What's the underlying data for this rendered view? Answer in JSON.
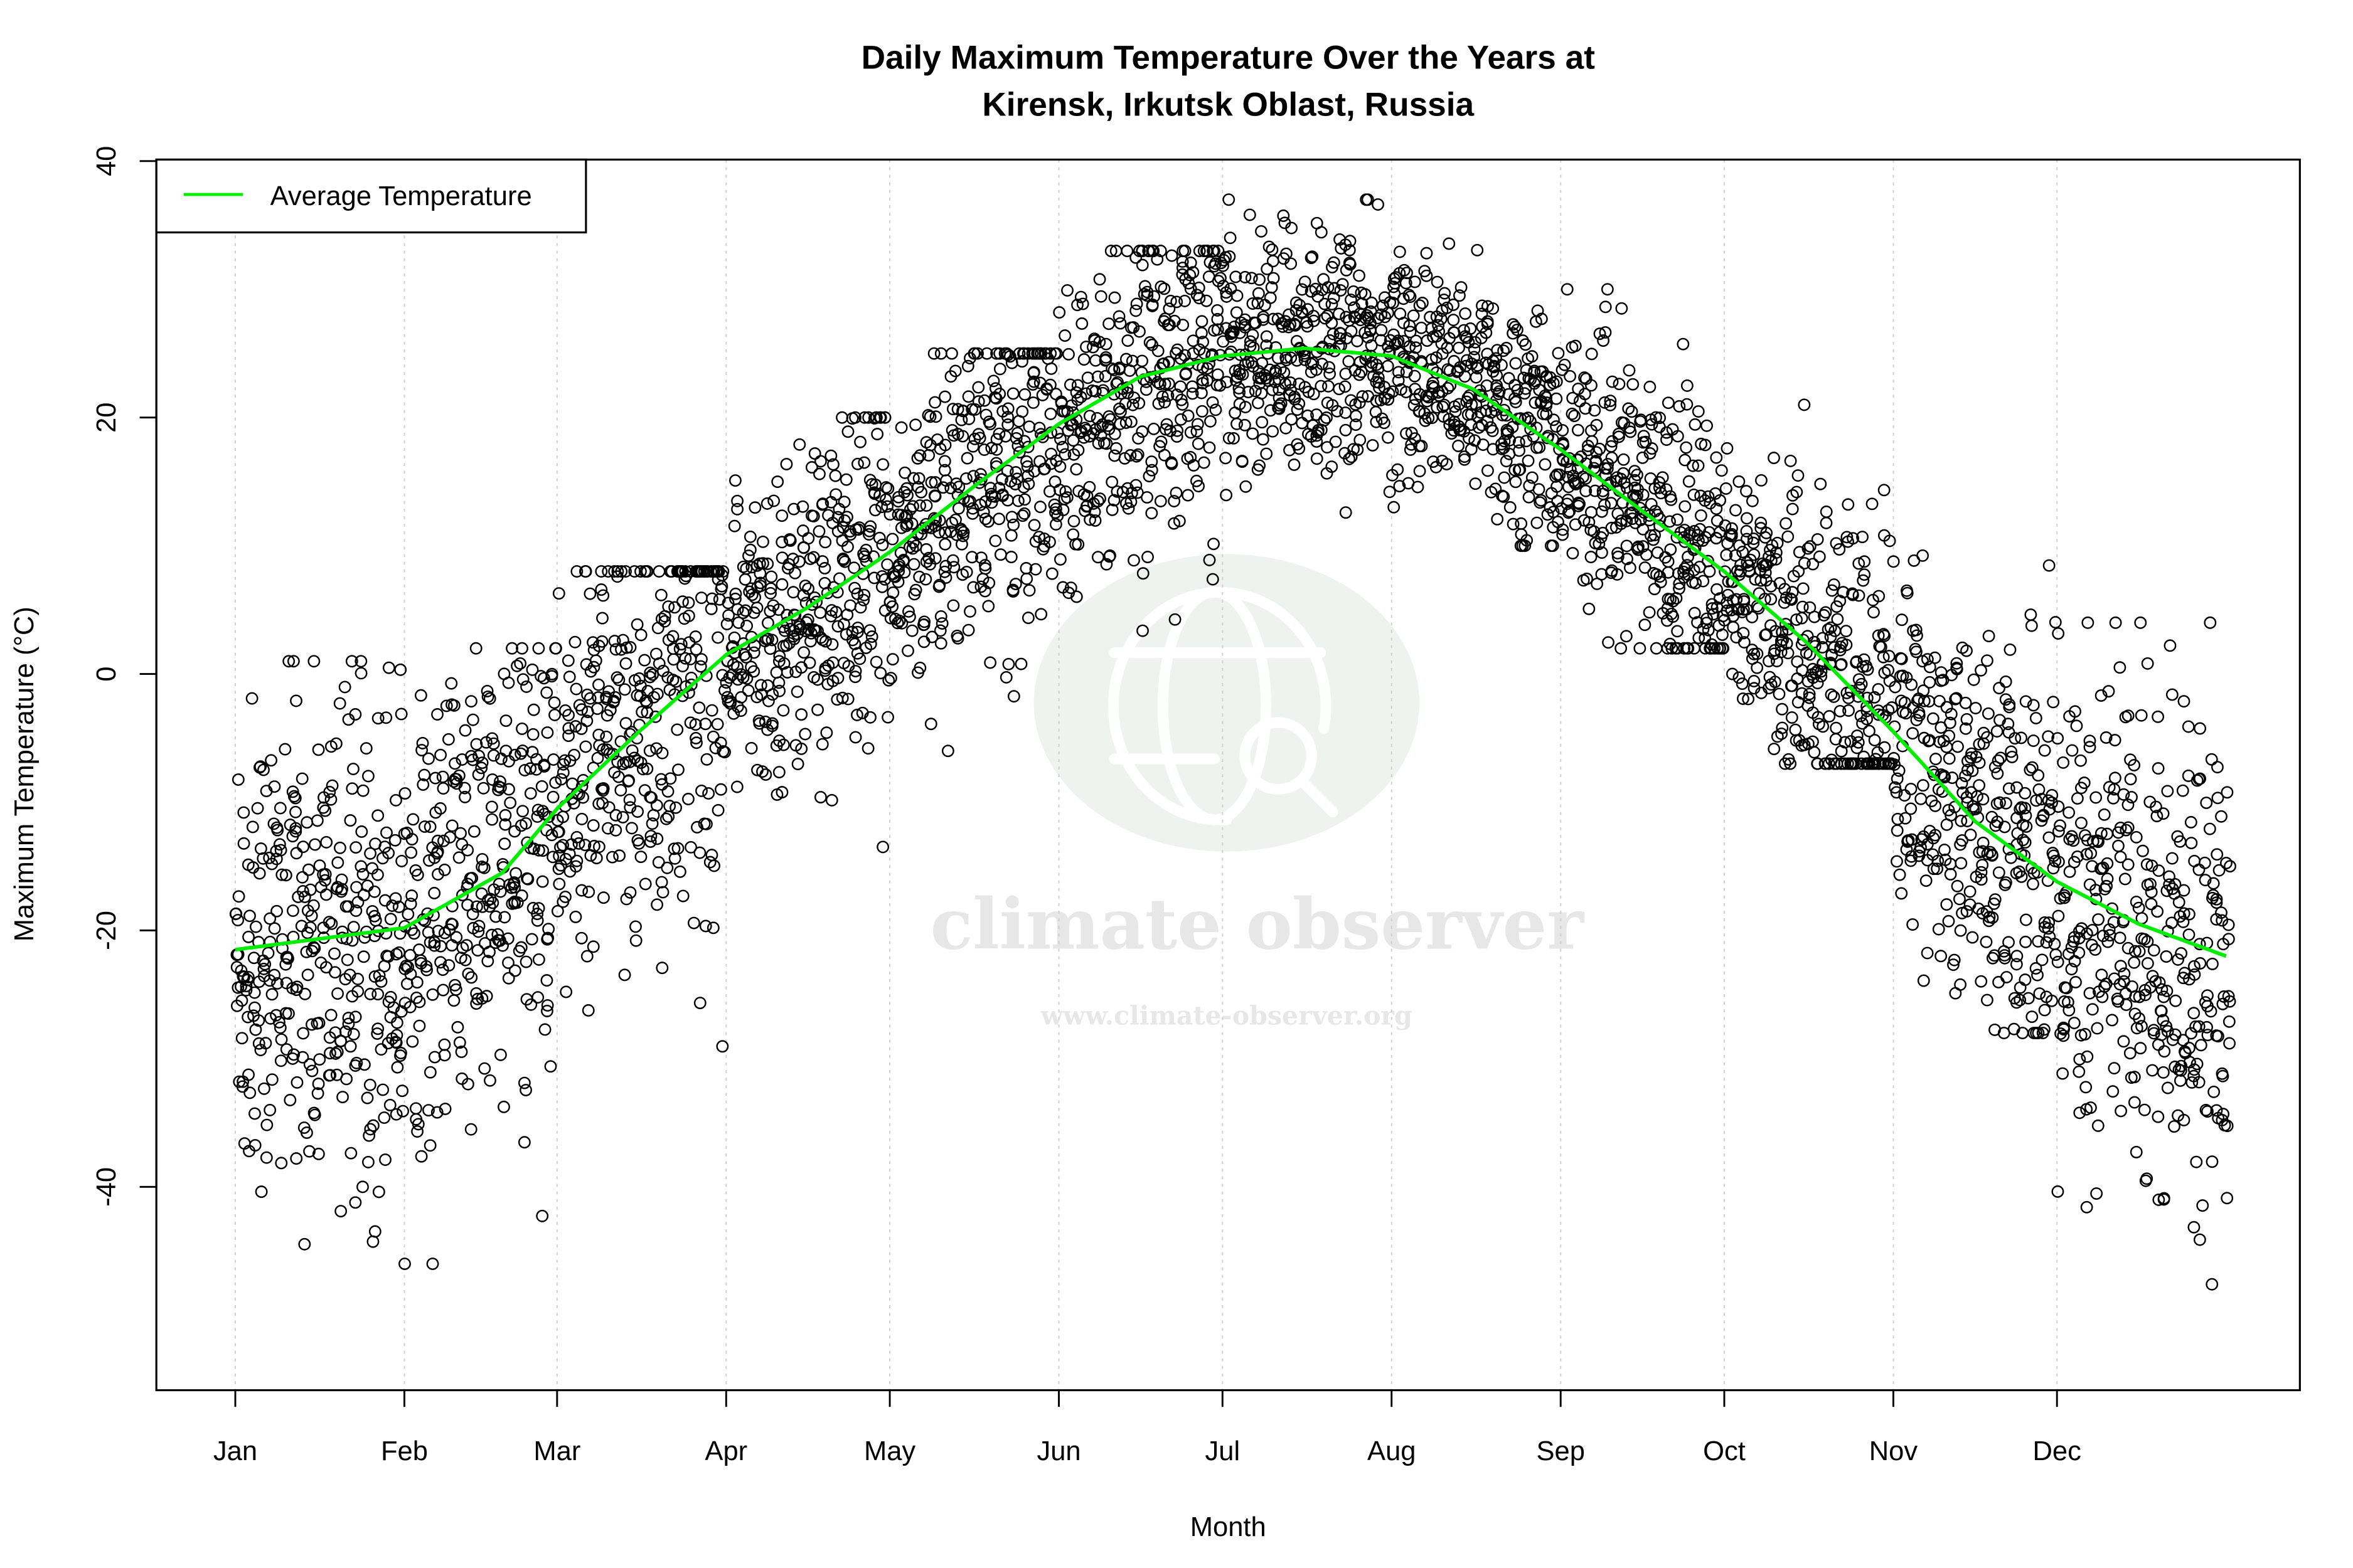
{
  "chart_data": {
    "type": "scatter",
    "title_line1": "Daily Maximum Temperature Over the Years at",
    "title_line2": "Kirensk, Irkutsk Oblast, Russia",
    "xlabel": "Month",
    "ylabel": "Maximum Temperature (°C)",
    "x_unit": "day of year",
    "xlim": [
      1,
      366
    ],
    "ylim": [
      -52,
      40
    ],
    "y_ticks": [
      40,
      20,
      0,
      -20,
      -40
    ],
    "x_ticks": [
      {
        "label": "Jan",
        "day": 1
      },
      {
        "label": "Feb",
        "day": 32
      },
      {
        "label": "Mar",
        "day": 60
      },
      {
        "label": "Apr",
        "day": 91
      },
      {
        "label": "May",
        "day": 121
      },
      {
        "label": "Jun",
        "day": 152
      },
      {
        "label": "Jul",
        "day": 182
      },
      {
        "label": "Aug",
        "day": 213
      },
      {
        "label": "Sep",
        "day": 244
      },
      {
        "label": "Oct",
        "day": 274
      },
      {
        "label": "Nov",
        "day": 305
      },
      {
        "label": "Dec",
        "day": 335
      }
    ],
    "grid": "vertical dotted at month ticks",
    "legend": {
      "position": "top-left",
      "entries": [
        {
          "label": "Average Temperature",
          "color": "#00ee00"
        }
      ]
    },
    "series": [
      {
        "name": "Average Temperature",
        "type": "line",
        "color": "#00ee00",
        "x": [
          1,
          32,
          50,
          60,
          75,
          91,
          106,
          121,
          137,
          152,
          167,
          182,
          197,
          213,
          228,
          244,
          259,
          274,
          289,
          305,
          320,
          335,
          350,
          366
        ],
        "y": [
          -21.5,
          -19.8,
          -15.5,
          -10.5,
          -4.5,
          1.5,
          5.2,
          9.5,
          14.8,
          19.5,
          23.2,
          24.8,
          25.4,
          24.8,
          22.2,
          17.5,
          12.7,
          8.0,
          2.5,
          -4.5,
          -11.5,
          -16.2,
          -19.5,
          -22.0
        ]
      },
      {
        "name": "",
        "type": "scatter",
        "marker": "open circle",
        "color": "#000000",
        "monthly_envelope": {
          "months": [
            "Jan",
            "Feb",
            "Mar",
            "Apr",
            "May",
            "Jun",
            "Jul",
            "Aug",
            "Sep",
            "Oct",
            "Nov",
            "Dec"
          ],
          "min": [
            -52,
            -46,
            -33,
            -15,
            -6,
            3,
            10,
            10,
            2,
            -7,
            -28,
            -52
          ],
          "max": [
            1,
            2,
            8,
            20,
            25,
            33,
            37,
            36,
            30,
            21,
            12,
            4
          ]
        }
      }
    ],
    "watermark": {
      "brand": "climate observer",
      "url": "www.climate-observer.org"
    }
  }
}
